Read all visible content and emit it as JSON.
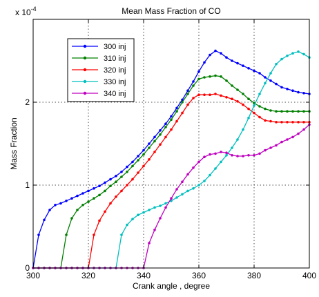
{
  "chart_data": {
    "type": "line",
    "title": "Mean Mass Fraction of CO",
    "xlabel": "Crank angle , degree",
    "ylabel": "Mass Fraction",
    "y_multiplier_base": "x 10",
    "y_multiplier_exp": "-4",
    "xlim": [
      300,
      400
    ],
    "ylim": [
      0,
      3.0
    ],
    "xticks": [
      "300",
      "320",
      "340",
      "360",
      "380",
      "400"
    ],
    "yticks": [
      "0",
      "1",
      "2"
    ],
    "grid": true,
    "legend_position": "top-left",
    "x": [
      300,
      302,
      304,
      306,
      308,
      310,
      312,
      314,
      316,
      318,
      320,
      322,
      324,
      326,
      328,
      330,
      332,
      334,
      336,
      338,
      340,
      342,
      344,
      346,
      348,
      350,
      352,
      354,
      356,
      358,
      360,
      362,
      364,
      366,
      368,
      370,
      372,
      374,
      376,
      378,
      380,
      382,
      384,
      386,
      388,
      390,
      392,
      394,
      396,
      398,
      400
    ],
    "series": [
      {
        "name": "300 inj",
        "color": "#0000ff",
        "values": [
          0.0,
          0.4,
          0.58,
          0.7,
          0.76,
          0.78,
          0.81,
          0.84,
          0.87,
          0.9,
          0.93,
          0.96,
          0.99,
          1.03,
          1.07,
          1.11,
          1.16,
          1.22,
          1.28,
          1.35,
          1.42,
          1.5,
          1.58,
          1.66,
          1.74,
          1.83,
          1.93,
          2.03,
          2.14,
          2.25,
          2.37,
          2.48,
          2.57,
          2.62,
          2.59,
          2.54,
          2.5,
          2.47,
          2.44,
          2.41,
          2.38,
          2.35,
          2.3,
          2.26,
          2.22,
          2.18,
          2.16,
          2.14,
          2.12,
          2.11,
          2.1
        ]
      },
      {
        "name": "310 inj",
        "color": "#008000",
        "values": [
          0.0,
          0.0,
          0.0,
          0.0,
          0.0,
          0.0,
          0.4,
          0.6,
          0.7,
          0.76,
          0.8,
          0.84,
          0.88,
          0.93,
          0.99,
          1.04,
          1.1,
          1.16,
          1.23,
          1.3,
          1.37,
          1.45,
          1.53,
          1.61,
          1.7,
          1.79,
          1.89,
          2.0,
          2.1,
          2.2,
          2.28,
          2.3,
          2.31,
          2.32,
          2.31,
          2.26,
          2.2,
          2.15,
          2.1,
          2.04,
          1.99,
          1.95,
          1.92,
          1.9,
          1.89,
          1.89,
          1.89,
          1.89,
          1.89,
          1.89,
          1.89
        ]
      },
      {
        "name": "320 inj",
        "color": "#ff0000",
        "values": [
          0.0,
          0.0,
          0.0,
          0.0,
          0.0,
          0.0,
          0.0,
          0.0,
          0.0,
          0.0,
          0.0,
          0.4,
          0.57,
          0.68,
          0.78,
          0.86,
          0.93,
          1.0,
          1.07,
          1.15,
          1.23,
          1.31,
          1.4,
          1.49,
          1.58,
          1.67,
          1.77,
          1.87,
          1.97,
          2.05,
          2.09,
          2.09,
          2.09,
          2.1,
          2.08,
          2.06,
          2.04,
          2.01,
          1.97,
          1.92,
          1.87,
          1.82,
          1.78,
          1.77,
          1.76,
          1.76,
          1.76,
          1.76,
          1.76,
          1.76,
          1.76
        ]
      },
      {
        "name": "330 inj",
        "color": "#00bfbf",
        "values": [
          0.0,
          0.0,
          0.0,
          0.0,
          0.0,
          0.0,
          0.0,
          0.0,
          0.0,
          0.0,
          0.0,
          0.0,
          0.0,
          0.0,
          0.0,
          0.0,
          0.4,
          0.52,
          0.59,
          0.64,
          0.67,
          0.7,
          0.73,
          0.75,
          0.78,
          0.81,
          0.85,
          0.89,
          0.93,
          0.96,
          1.0,
          1.05,
          1.12,
          1.2,
          1.28,
          1.36,
          1.45,
          1.55,
          1.67,
          1.81,
          1.96,
          2.1,
          2.23,
          2.35,
          2.46,
          2.52,
          2.56,
          2.59,
          2.61,
          2.58,
          2.54
        ]
      },
      {
        "name": "340 inj",
        "color": "#bf00bf",
        "values": [
          0.0,
          0.0,
          0.0,
          0.0,
          0.0,
          0.0,
          0.0,
          0.0,
          0.0,
          0.0,
          0.0,
          0.0,
          0.0,
          0.0,
          0.0,
          0.0,
          0.0,
          0.0,
          0.0,
          0.0,
          0.0,
          0.3,
          0.46,
          0.6,
          0.73,
          0.84,
          0.95,
          1.04,
          1.13,
          1.21,
          1.28,
          1.34,
          1.37,
          1.38,
          1.4,
          1.39,
          1.36,
          1.35,
          1.35,
          1.36,
          1.36,
          1.38,
          1.42,
          1.45,
          1.48,
          1.52,
          1.55,
          1.58,
          1.62,
          1.67,
          1.73
        ]
      }
    ]
  }
}
